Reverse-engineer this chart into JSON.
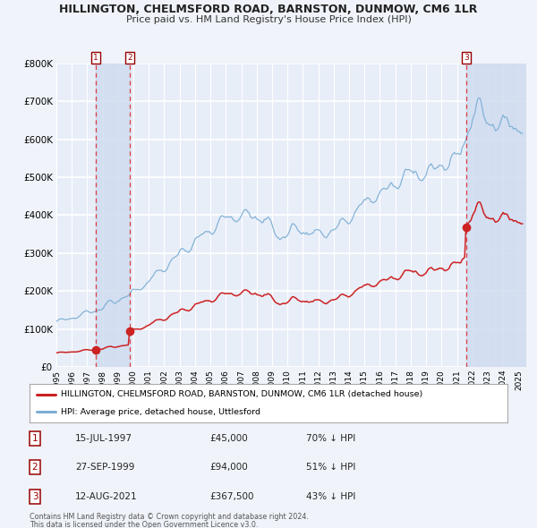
{
  "title": "HILLINGTON, CHELMSFORD ROAD, BARNSTON, DUNMOW, CM6 1LR",
  "subtitle": "Price paid vs. HM Land Registry's House Price Index (HPI)",
  "ylim": [
    0,
    800000
  ],
  "yticks": [
    0,
    100000,
    200000,
    300000,
    400000,
    500000,
    600000,
    700000,
    800000
  ],
  "ytick_labels": [
    "£0",
    "£100K",
    "£200K",
    "£300K",
    "£400K",
    "£500K",
    "£600K",
    "£700K",
    "£800K"
  ],
  "xlim_start": 1995.0,
  "xlim_end": 2025.5,
  "background_color": "#f0f4fa",
  "plot_bg_color": "#e8eef8",
  "grid_color": "#ffffff",
  "hpi_line_color": "#7aadd4",
  "price_line_color": "#cc2222",
  "marker_color": "#cc2222",
  "vline_color": "#dd2222",
  "shade_color": "#d0dcf0",
  "transactions": [
    {
      "num": 1,
      "date_str": "15-JUL-1997",
      "year": 1997.54,
      "price": 45000,
      "pct": "70%"
    },
    {
      "num": 2,
      "date_str": "27-SEP-1999",
      "year": 1999.75,
      "price": 94000,
      "pct": "51%"
    },
    {
      "num": 3,
      "date_str": "12-AUG-2021",
      "year": 2021.62,
      "price": 367500,
      "pct": "43%"
    }
  ],
  "footnote1": "Contains HM Land Registry data © Crown copyright and database right 2024.",
  "footnote2": "This data is licensed under the Open Government Licence v3.0.",
  "legend1_text": "HILLINGTON, CHELMSFORD ROAD, BARNSTON, DUNMOW, CM6 1LR (detached house)",
  "legend2_text": "HPI: Average price, detached house, Uttlesford"
}
